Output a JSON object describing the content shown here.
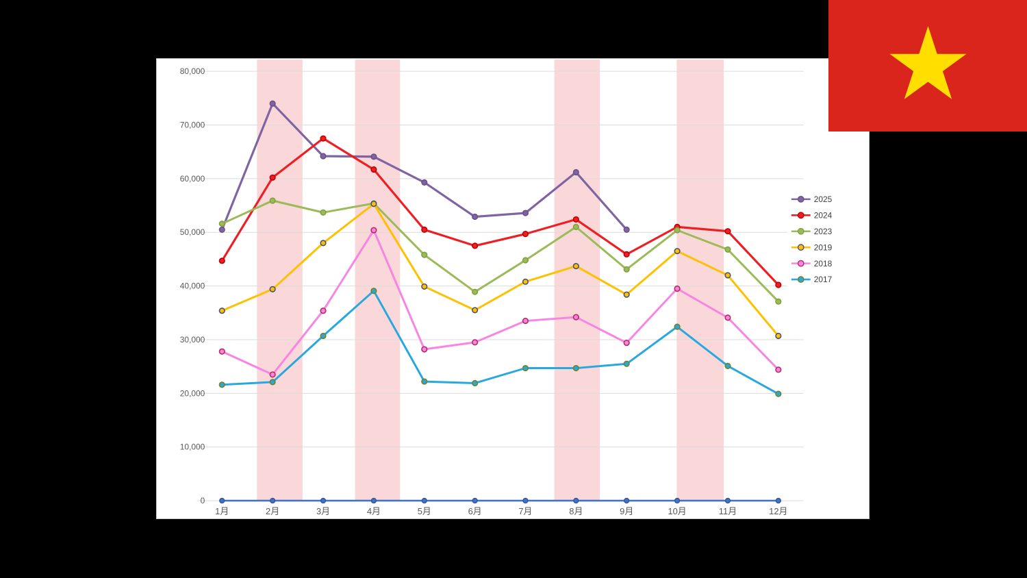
{
  "chart_data": {
    "type": "line",
    "title": "",
    "xlabel": "",
    "ylabel": "",
    "categories": [
      "1月",
      "2月",
      "3月",
      "4月",
      "5月",
      "6月",
      "7月",
      "8月",
      "9月",
      "10月",
      "11月",
      "12月"
    ],
    "y_ticks": [
      "0",
      "10,000",
      "20,000",
      "30,000",
      "40,000",
      "50,000",
      "60,000",
      "70,000",
      "80,000"
    ],
    "ylim": [
      0,
      80000
    ],
    "grid": "horizontal",
    "legend_position": "right-inside",
    "grid_color": "#DCDCDC",
    "band_color": "#FAD7D8",
    "text_color": "#595959",
    "panel_bg": "#FFFFFF",
    "page_bg": "#000000",
    "highlight_bands_months": [
      [
        1.69,
        2.59
      ],
      [
        3.63,
        4.52
      ],
      [
        7.57,
        8.47
      ],
      [
        9.99,
        10.92
      ]
    ],
    "series": [
      {
        "name": "2025",
        "color": "#8064A2",
        "marker_stroke": "#69518A",
        "line_width": 3.2,
        "values": [
          50500,
          74000,
          64200,
          64100,
          59300,
          52900,
          53600,
          61200,
          50500,
          null,
          null,
          null
        ]
      },
      {
        "name": "2024",
        "color": "#ED1F24",
        "marker_stroke": "#C00000",
        "line_width": 3.2,
        "values": [
          44700,
          60200,
          67500,
          61700,
          50500,
          47500,
          49700,
          52400,
          45900,
          51000,
          50200,
          40200
        ]
      },
      {
        "name": "2023",
        "color": "#9BBB59",
        "marker_stroke": "#81A03F",
        "line_width": 3,
        "values": [
          51600,
          55900,
          53700,
          55400,
          45800,
          38900,
          44800,
          51000,
          43100,
          50400,
          46800,
          37100
        ]
      },
      {
        "name": "2019",
        "color": "#FFC000",
        "marker_stroke": "#46527A",
        "line_width": 3,
        "values": [
          35400,
          39400,
          48000,
          55300,
          39900,
          35500,
          40800,
          43700,
          38400,
          46500,
          42000,
          30700
        ]
      },
      {
        "name": "2018",
        "color": "#F884E3",
        "marker_stroke": "#B72A5E",
        "line_width": 3,
        "values": [
          27800,
          23500,
          35400,
          50400,
          28200,
          29500,
          33500,
          34200,
          29400,
          39500,
          34100,
          24400
        ]
      },
      {
        "name": "2017",
        "color": "#28A8E0",
        "marker_stroke": "#77801F",
        "line_width": 3,
        "values": [
          21600,
          22100,
          30700,
          39100,
          22200,
          21900,
          24700,
          24700,
          25500,
          32400,
          25100,
          19900
        ]
      },
      {
        "name": "zero-baseline",
        "color": "#4472C4",
        "marker_stroke": "#35599E",
        "line_width": 2.6,
        "in_legend": false,
        "values": [
          0,
          0,
          0,
          0,
          0,
          0,
          0,
          0,
          0,
          0,
          0,
          0
        ]
      }
    ],
    "legend": {
      "labels": [
        "2025",
        "2024",
        "2023",
        "2019",
        "2018",
        "2017"
      ]
    }
  },
  "flag": {
    "country": "vietnam",
    "red": "#DA251D",
    "star_yellow": "#FFDE00"
  }
}
